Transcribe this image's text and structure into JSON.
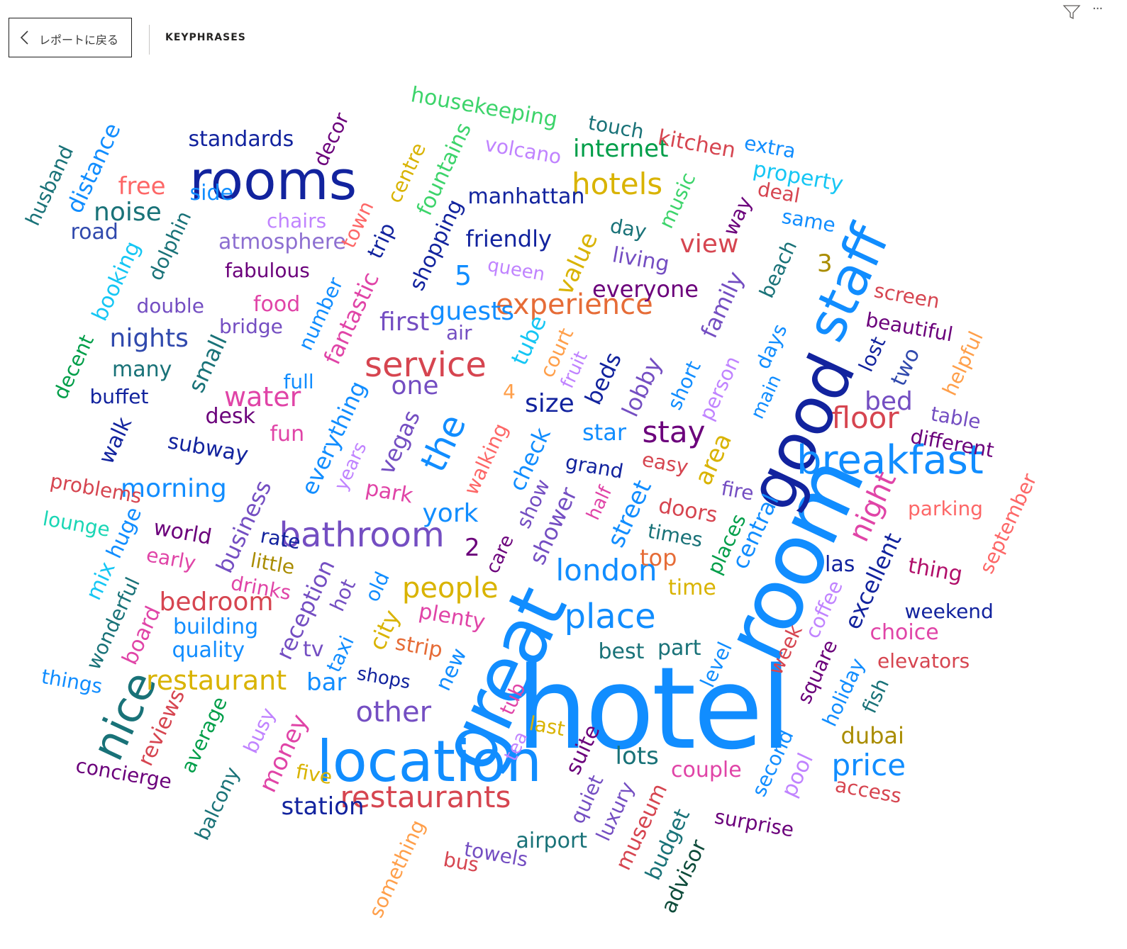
{
  "header": {
    "back_label": "レポートに戻る",
    "page_title": "KEYPHRASES"
  },
  "icons": {
    "back": "chevron-left-icon",
    "filter": "filter-icon",
    "more": "more-options-icon"
  },
  "words": [
    {
      "text": "hotel",
      "color": "#118dff"
    },
    {
      "text": "room",
      "color": "#118dff"
    },
    {
      "text": "great",
      "color": "#118dff"
    },
    {
      "text": "good",
      "color": "#12239e"
    },
    {
      "text": "staff",
      "color": "#118dff"
    },
    {
      "text": "rooms",
      "color": "#12239e"
    },
    {
      "text": "location",
      "color": "#118dff"
    },
    {
      "text": "breakfast",
      "color": "#118dff"
    },
    {
      "text": "bathroom",
      "color": "#744ec2"
    },
    {
      "text": "service",
      "color": "#d64550"
    },
    {
      "text": "nice",
      "color": "#197278"
    },
    {
      "text": "place",
      "color": "#118dff"
    },
    {
      "text": "restaurants",
      "color": "#d64550"
    },
    {
      "text": "experience",
      "color": "#e66c37"
    },
    {
      "text": "london",
      "color": "#118dff"
    },
    {
      "text": "price",
      "color": "#118dff"
    },
    {
      "text": "hotels",
      "color": "#d9b300"
    },
    {
      "text": "stay",
      "color": "#6b007b"
    },
    {
      "text": "floor",
      "color": "#d64550"
    },
    {
      "text": "night",
      "color": "#e044a7"
    },
    {
      "text": "people",
      "color": "#d9b300"
    },
    {
      "text": "restaurant",
      "color": "#d9b300"
    },
    {
      "text": "other",
      "color": "#744ec2"
    },
    {
      "text": "the",
      "color": "#118dff"
    },
    {
      "text": "water",
      "color": "#e044a7"
    },
    {
      "text": "nights",
      "color": "#3049ad"
    },
    {
      "text": "noise",
      "color": "#197278"
    },
    {
      "text": "guests",
      "color": "#118dff"
    },
    {
      "text": "morning",
      "color": "#118dff"
    },
    {
      "text": "bedroom",
      "color": "#d64550"
    },
    {
      "text": "york",
      "color": "#118dff"
    },
    {
      "text": "first",
      "color": "#744ec2"
    },
    {
      "text": "one",
      "color": "#744ec2"
    },
    {
      "text": "size",
      "color": "#12239e"
    },
    {
      "text": "bed",
      "color": "#744ec2"
    },
    {
      "text": "view",
      "color": "#d64550"
    },
    {
      "text": "free",
      "color": "#fd6767"
    },
    {
      "text": "internet",
      "color": "#009e49"
    },
    {
      "text": "manhattan",
      "color": "#12239e"
    },
    {
      "text": "friendly",
      "color": "#12239e"
    },
    {
      "text": "family",
      "color": "#744ec2"
    },
    {
      "text": "business",
      "color": "#744ec2"
    },
    {
      "text": "reception",
      "color": "#744ec2"
    },
    {
      "text": "street",
      "color": "#118dff"
    },
    {
      "text": "central",
      "color": "#118dff"
    },
    {
      "text": "excellent",
      "color": "#12239e"
    },
    {
      "text": "standards",
      "color": "#12239e"
    },
    {
      "text": "everyone",
      "color": "#6b007b"
    },
    {
      "text": "value",
      "color": "#d9b300"
    },
    {
      "text": "atmosphere",
      "color": "#8d6fd1"
    },
    {
      "text": "fantastic",
      "color": "#e044a7"
    },
    {
      "text": "vegas",
      "color": "#744ec2"
    },
    {
      "text": "check",
      "color": "#118dff"
    },
    {
      "text": "shower",
      "color": "#744ec2"
    },
    {
      "text": "lobby",
      "color": "#744ec2"
    },
    {
      "text": "beds",
      "color": "#12239e"
    },
    {
      "text": "area",
      "color": "#d9b300"
    },
    {
      "text": "city",
      "color": "#d9b300"
    },
    {
      "text": "money",
      "color": "#e044a7"
    },
    {
      "text": "station",
      "color": "#12239e"
    },
    {
      "text": "lots",
      "color": "#197278"
    },
    {
      "text": "couple",
      "color": "#e044a7"
    },
    {
      "text": "top",
      "color": "#e66c37"
    },
    {
      "text": "time",
      "color": "#d9b300"
    },
    {
      "text": "star",
      "color": "#118dff"
    },
    {
      "text": "parking",
      "color": "#fd6767"
    },
    {
      "text": "choice",
      "color": "#e044a7"
    },
    {
      "text": "weekend",
      "color": "#12239e"
    },
    {
      "text": "elevators",
      "color": "#d64550"
    },
    {
      "text": "dubai",
      "color": "#a98c00"
    },
    {
      "text": "bar",
      "color": "#118dff"
    },
    {
      "text": "airport",
      "color": "#197278"
    },
    {
      "text": "best",
      "color": "#197278"
    },
    {
      "text": "part",
      "color": "#197278"
    },
    {
      "text": "building",
      "color": "#118dff"
    },
    {
      "text": "quality",
      "color": "#118dff"
    },
    {
      "text": "small",
      "color": "#197278"
    },
    {
      "text": "many",
      "color": "#197278"
    },
    {
      "text": "buffet",
      "color": "#12239e"
    },
    {
      "text": "desk",
      "color": "#6b007b"
    },
    {
      "text": "fun",
      "color": "#e044a7"
    },
    {
      "text": "food",
      "color": "#e044a7"
    },
    {
      "text": "double",
      "color": "#744ec2"
    },
    {
      "text": "bridge",
      "color": "#744ec2"
    },
    {
      "text": "fabulous",
      "color": "#6b007b"
    },
    {
      "text": "road",
      "color": "#3049ad"
    },
    {
      "text": "side",
      "color": "#118dff"
    },
    {
      "text": "chairs",
      "color": "#c083ff"
    },
    {
      "text": "housekeeping",
      "color": "#3dd46b"
    },
    {
      "text": "volcano",
      "color": "#c083ff"
    },
    {
      "text": "touch",
      "color": "#197278"
    },
    {
      "text": "kitchen",
      "color": "#d64550"
    },
    {
      "text": "extra",
      "color": "#118dff"
    },
    {
      "text": "property",
      "color": "#15c6f4"
    },
    {
      "text": "deal",
      "color": "#d64550"
    },
    {
      "text": "same",
      "color": "#118dff"
    },
    {
      "text": "day",
      "color": "#197278"
    },
    {
      "text": "living",
      "color": "#744ec2"
    },
    {
      "text": "queen",
      "color": "#c083ff"
    },
    {
      "text": "air",
      "color": "#744ec2"
    },
    {
      "text": "screen",
      "color": "#d64550"
    },
    {
      "text": "beautiful",
      "color": "#6b007b"
    },
    {
      "text": "table",
      "color": "#744ec2"
    },
    {
      "text": "different",
      "color": "#6b007b"
    },
    {
      "text": "thing",
      "color": "#b10f6a"
    },
    {
      "text": "problems",
      "color": "#d64550"
    },
    {
      "text": "lounge",
      "color": "#1ad6b5"
    },
    {
      "text": "world",
      "color": "#6b007b"
    },
    {
      "text": "rate",
      "color": "#12239e"
    },
    {
      "text": "early",
      "color": "#e044a7"
    },
    {
      "text": "little",
      "color": "#a98c00"
    },
    {
      "text": "drinks",
      "color": "#e044a7"
    },
    {
      "text": "subway",
      "color": "#12239e"
    },
    {
      "text": "grand",
      "color": "#12239e"
    },
    {
      "text": "easy",
      "color": "#d64550"
    },
    {
      "text": "fire",
      "color": "#744ec2"
    },
    {
      "text": "doors",
      "color": "#d64550"
    },
    {
      "text": "times",
      "color": "#197278"
    },
    {
      "text": "las",
      "color": "#12239e"
    },
    {
      "text": "park",
      "color": "#e044a7"
    },
    {
      "text": "plenty",
      "color": "#e044a7"
    },
    {
      "text": "strip",
      "color": "#e66c37"
    },
    {
      "text": "shops",
      "color": "#12239e"
    },
    {
      "text": "tv",
      "color": "#744ec2"
    },
    {
      "text": "things",
      "color": "#118dff"
    },
    {
      "text": "concierge",
      "color": "#6b007b"
    },
    {
      "text": "five",
      "color": "#d9b300"
    },
    {
      "text": "last",
      "color": "#d9b300"
    },
    {
      "text": "towels",
      "color": "#744ec2"
    },
    {
      "text": "bus",
      "color": "#d64550"
    },
    {
      "text": "surprise",
      "color": "#6b007b"
    },
    {
      "text": "access",
      "color": "#d64550"
    },
    {
      "text": "full",
      "color": "#118dff"
    },
    {
      "text": "5",
      "color": "#118dff"
    },
    {
      "text": "2",
      "color": "#6b007b"
    },
    {
      "text": "3",
      "color": "#a98c00"
    },
    {
      "text": "4",
      "color": "#ff9f4a"
    },
    {
      "text": "husband",
      "color": "#197278"
    },
    {
      "text": "distance",
      "color": "#118dff"
    },
    {
      "text": "booking",
      "color": "#15c6f4"
    },
    {
      "text": "dolphin",
      "color": "#197278"
    },
    {
      "text": "decent",
      "color": "#009e49"
    },
    {
      "text": "walk",
      "color": "#12239e"
    },
    {
      "text": "decor",
      "color": "#6b007b"
    },
    {
      "text": "town",
      "color": "#fd6767"
    },
    {
      "text": "trip",
      "color": "#12239e"
    },
    {
      "text": "number",
      "color": "#118dff"
    },
    {
      "text": "centre",
      "color": "#d9b300"
    },
    {
      "text": "fountains",
      "color": "#3dd46b"
    },
    {
      "text": "shopping",
      "color": "#12239e"
    },
    {
      "text": "music",
      "color": "#3dd46b"
    },
    {
      "text": "way",
      "color": "#6b007b"
    },
    {
      "text": "beach",
      "color": "#197278"
    },
    {
      "text": "everything",
      "color": "#118dff"
    },
    {
      "text": "years",
      "color": "#c083ff"
    },
    {
      "text": "tube",
      "color": "#15c6f4"
    },
    {
      "text": "court",
      "color": "#ff9f4a"
    },
    {
      "text": "fruit",
      "color": "#c083ff"
    },
    {
      "text": "walking",
      "color": "#fd6767"
    },
    {
      "text": "short",
      "color": "#118dff"
    },
    {
      "text": "person",
      "color": "#c083ff"
    },
    {
      "text": "days",
      "color": "#118dff"
    },
    {
      "text": "main",
      "color": "#118dff"
    },
    {
      "text": "lost",
      "color": "#12239e"
    },
    {
      "text": "two",
      "color": "#3049ad"
    },
    {
      "text": "helpful",
      "color": "#ff9f4a"
    },
    {
      "text": "september",
      "color": "#fd6767"
    },
    {
      "text": "show",
      "color": "#744ec2"
    },
    {
      "text": "care",
      "color": "#6b007b"
    },
    {
      "text": "half",
      "color": "#e044a7"
    },
    {
      "text": "places",
      "color": "#009e49"
    },
    {
      "text": "coffee",
      "color": "#c083ff"
    },
    {
      "text": "week",
      "color": "#d64550"
    },
    {
      "text": "square",
      "color": "#6b007b"
    },
    {
      "text": "holiday",
      "color": "#118dff"
    },
    {
      "text": "fish",
      "color": "#197278"
    },
    {
      "text": "huge",
      "color": "#118dff"
    },
    {
      "text": "mix",
      "color": "#15c6f4"
    },
    {
      "text": "wonderful",
      "color": "#197278"
    },
    {
      "text": "board",
      "color": "#e044a7"
    },
    {
      "text": "reviews",
      "color": "#d64550"
    },
    {
      "text": "average",
      "color": "#009e49"
    },
    {
      "text": "busy",
      "color": "#c083ff"
    },
    {
      "text": "balcony",
      "color": "#197278"
    },
    {
      "text": "hot",
      "color": "#744ec2"
    },
    {
      "text": "old",
      "color": "#118dff"
    },
    {
      "text": "taxi",
      "color": "#118dff"
    },
    {
      "text": "new",
      "color": "#118dff"
    },
    {
      "text": "tub",
      "color": "#e044a7"
    },
    {
      "text": "tea",
      "color": "#c083ff"
    },
    {
      "text": "something",
      "color": "#ff9f4a"
    },
    {
      "text": "suite",
      "color": "#6b007b"
    },
    {
      "text": "quiet",
      "color": "#744ec2"
    },
    {
      "text": "luxury",
      "color": "#744ec2"
    },
    {
      "text": "museum",
      "color": "#d64550"
    },
    {
      "text": "budget",
      "color": "#197278"
    },
    {
      "text": "advisor",
      "color": "#0e4b3a"
    },
    {
      "text": "level",
      "color": "#118dff"
    },
    {
      "text": "second",
      "color": "#118dff"
    },
    {
      "text": "pool",
      "color": "#c083ff"
    }
  ]
}
